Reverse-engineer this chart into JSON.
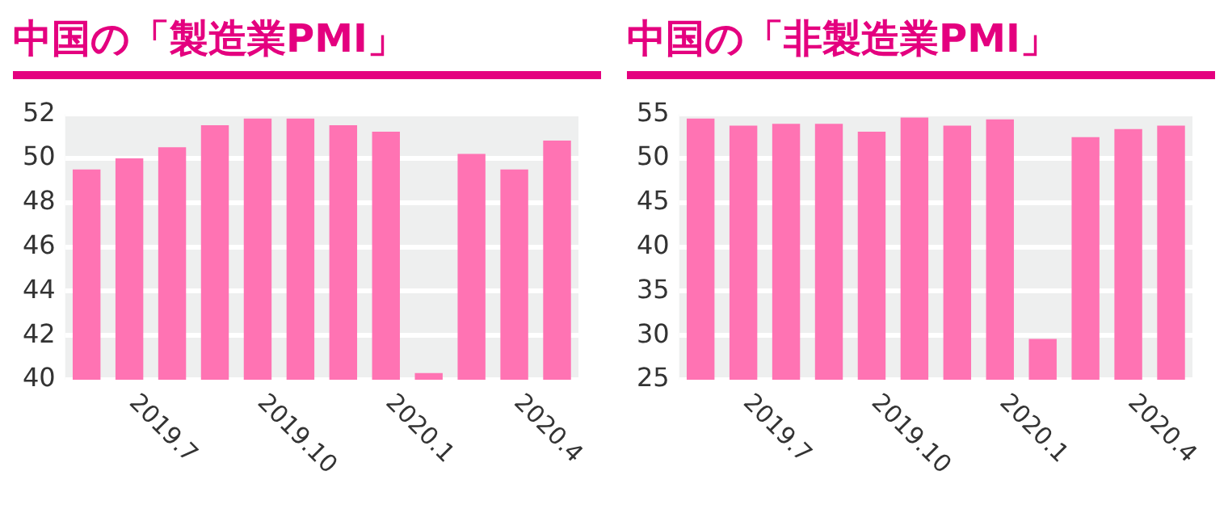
{
  "chart_data": [
    {
      "type": "bar",
      "title": "中国の「製造業PMI」",
      "categories": [
        null,
        "2019.7",
        null,
        null,
        "2019.10",
        null,
        null,
        "2020.1",
        null,
        null,
        "2020.4",
        null
      ],
      "values": [
        49.5,
        50.0,
        50.5,
        51.5,
        51.8,
        51.8,
        51.5,
        51.2,
        40.3,
        50.2,
        49.5,
        50.8
      ],
      "color": "#ff73b3",
      "ylim": [
        40,
        52
      ],
      "yticks": [
        40,
        42,
        44,
        46,
        48,
        50,
        52
      ],
      "grid": "y"
    },
    {
      "type": "bar",
      "title": "中国の「非製造業PMI」",
      "categories": [
        null,
        "2019.7",
        null,
        null,
        "2019.10",
        null,
        null,
        "2020.1",
        null,
        null,
        "2020.4",
        null
      ],
      "values": [
        54.5,
        53.7,
        53.9,
        53.9,
        53.0,
        54.6,
        53.7,
        54.4,
        29.6,
        52.4,
        53.3,
        53.7
      ],
      "color": "#ff73b3",
      "ylim": [
        25,
        55
      ],
      "yticks": [
        25,
        30,
        35,
        40,
        45,
        50,
        55
      ],
      "grid": "y"
    }
  ]
}
